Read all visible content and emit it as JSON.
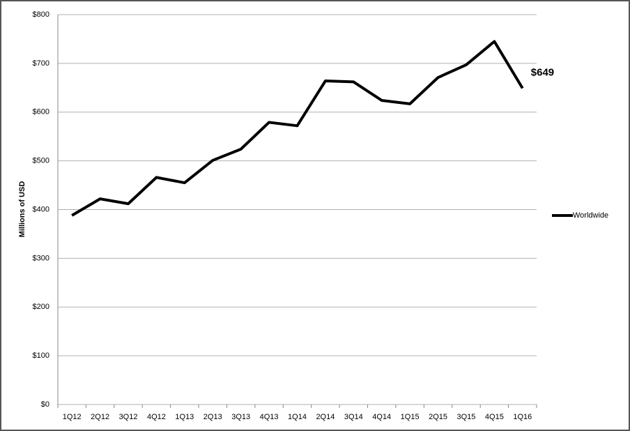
{
  "chart_data": {
    "type": "line",
    "y_label": "Millions of USD",
    "categories": [
      "1Q12",
      "2Q12",
      "3Q12",
      "4Q12",
      "1Q13",
      "2Q13",
      "3Q13",
      "4Q13",
      "1Q14",
      "2Q14",
      "3Q14",
      "4Q14",
      "1Q15",
      "2Q15",
      "3Q15",
      "4Q15",
      "1Q16"
    ],
    "series": [
      {
        "name": "Worldwide",
        "color": "#000000",
        "values": [
          388,
          422,
          412,
          466,
          455,
          501,
          524,
          579,
          572,
          664,
          662,
          624,
          617,
          671,
          697,
          745,
          649
        ],
        "value_labels": [
          null,
          null,
          null,
          null,
          null,
          null,
          null,
          null,
          null,
          null,
          null,
          null,
          null,
          null,
          null,
          null,
          "$649"
        ]
      }
    ],
    "ylim": [
      0,
      800
    ],
    "yticks": [
      {
        "value": 0,
        "label": "$0"
      },
      {
        "value": 100,
        "label": "$100"
      },
      {
        "value": 200,
        "label": "$200"
      },
      {
        "value": 300,
        "label": "$300"
      },
      {
        "value": 400,
        "label": "$400"
      },
      {
        "value": 500,
        "label": "$500"
      },
      {
        "value": 600,
        "label": "$600"
      },
      {
        "value": 700,
        "label": "$700"
      },
      {
        "value": 800,
        "label": "$800"
      }
    ],
    "grid": true,
    "legend": "right"
  }
}
